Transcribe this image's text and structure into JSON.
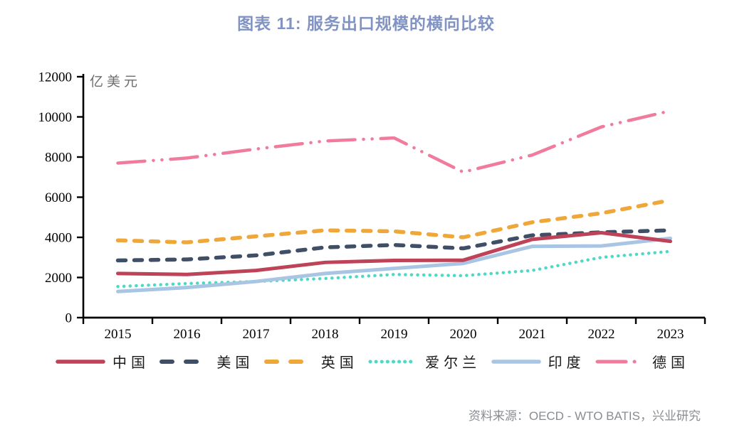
{
  "title": "图表  11: 服务出口规模的横向比较",
  "source": "资料来源：OECD - WTO BATIS，兴业研究",
  "chart_data": {
    "type": "line",
    "title": "图表  11: 服务出口规模的横向比较",
    "ylabel": "亿美元",
    "xlabel": "",
    "ylim": [
      0,
      12000
    ],
    "ytick_step": 2000,
    "grid": false,
    "legend_position": "bottom",
    "x": [
      "2015",
      "2016",
      "2017",
      "2018",
      "2019",
      "2020",
      "2021",
      "2022",
      "2023"
    ],
    "series": [
      {
        "name": "中国",
        "color": "#be4358",
        "style": "solid",
        "values": [
          2200,
          2150,
          2350,
          2750,
          2850,
          2860,
          3900,
          4230,
          3800
        ]
      },
      {
        "name": "美国",
        "color": "#404f66",
        "style": "dashed",
        "values": [
          2850,
          2900,
          3100,
          3500,
          3620,
          3450,
          4100,
          4250,
          4350
        ]
      },
      {
        "name": "英国",
        "color": "#f0a73a",
        "style": "dashed",
        "values": [
          3850,
          3750,
          4050,
          4350,
          4300,
          4000,
          4750,
          5200,
          5850
        ]
      },
      {
        "name": "爱尔兰",
        "color": "#4ed9c6",
        "style": "dotted",
        "values": [
          1550,
          1700,
          1800,
          1950,
          2150,
          2090,
          2350,
          3000,
          3300
        ]
      },
      {
        "name": "印度",
        "color": "#a9c5e4",
        "style": "solid",
        "values": [
          1300,
          1500,
          1800,
          2200,
          2450,
          2700,
          3550,
          3570,
          3950
        ]
      },
      {
        "name": "德国",
        "color": "#f07b9c",
        "style": "dashdot",
        "values": [
          7700,
          7950,
          8400,
          8800,
          8950,
          7250,
          8100,
          9500,
          10300
        ]
      }
    ]
  }
}
